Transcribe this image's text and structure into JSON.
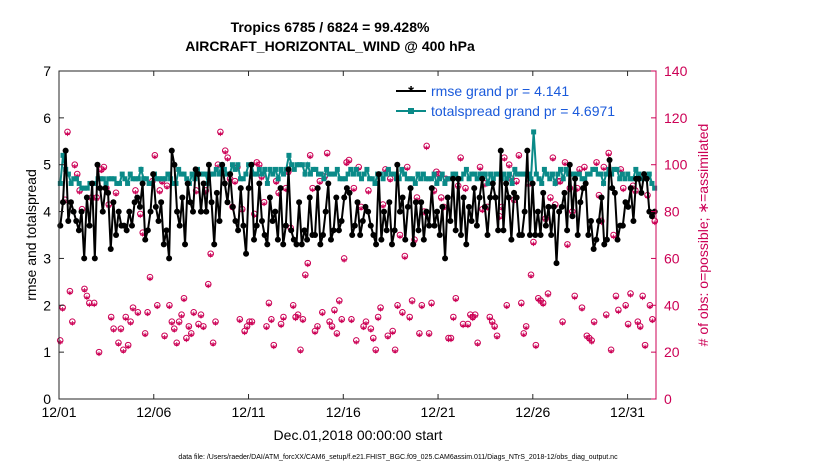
{
  "titles": {
    "line1": "Tropics 6785 / 6824 = 99.428%",
    "line2": "AIRCRAFT_HORIZONTAL_WIND @ 400 hPa"
  },
  "footer": "data file: /Users/raeder/DAI/ATM_forcXX/CAM6_setup/f.e21.FHIST_BGC.f09_025.CAM6assim.011/Diags_NTrS_2018-12/obs_diag_output.nc",
  "colors": {
    "rmse": "#000000",
    "spread": "#0a8a88",
    "obs": "#cc0055",
    "legend_text": "#1a5adb"
  },
  "chart_data": {
    "type": "line",
    "xlabel": "Dec.01,2018 00:00:00 start",
    "ylabel": "rmse and totalspread",
    "y2label": "# of obs: o=possible; ∗=assimilated",
    "xlim": [
      0,
      31.5
    ],
    "ylim": [
      0,
      7
    ],
    "y2lim": [
      0,
      140
    ],
    "xticks": [
      0,
      5,
      10,
      15,
      20,
      25,
      30
    ],
    "xtick_labels": [
      "12/01",
      "12/06",
      "12/11",
      "12/16",
      "12/21",
      "12/26",
      "12/31"
    ],
    "yticks": [
      0,
      1,
      2,
      3,
      4,
      5,
      6,
      7
    ],
    "ytick_labels": [
      "0",
      "1",
      "2",
      "3",
      "4",
      "5",
      "6",
      "7"
    ],
    "y2ticks": [
      0,
      20,
      40,
      60,
      80,
      100,
      120,
      140
    ],
    "y2tick_labels": [
      "0",
      "20",
      "40",
      "60",
      "80",
      "100",
      "120",
      "140"
    ],
    "legend": [
      "rmse grand pr = 4.141",
      "totalspread grand pr = 4.6971"
    ],
    "legend_location": "top-right",
    "rmse_values": [
      3.7,
      4.2,
      5.3,
      3.8,
      4.2,
      4.0,
      3.8,
      3.6,
      4.0,
      3.0,
      4.3,
      3.7,
      4.6,
      3.0,
      5.0,
      4.5,
      4.0,
      4.5,
      4.4,
      3.2,
      4.2,
      3.5,
      4.0,
      3.7,
      3.7,
      3.6,
      4.0,
      3.7,
      4.2,
      4.3,
      4.1,
      4.6,
      3.4,
      3.6,
      4.0,
      4.8,
      4.1,
      3.8,
      4.2,
      3.3,
      3.6,
      3.0,
      5.3,
      5.0,
      4.0,
      3.7,
      4.3,
      3.3,
      4.6,
      4.2,
      4.0,
      4.9,
      4.8,
      4.0,
      4.6,
      4.0,
      5.0,
      4.2,
      3.3,
      4.4,
      3.8,
      5.0,
      4.6,
      4.2,
      4.8,
      4.1,
      3.8,
      3.6,
      4.5,
      3.7,
      3.1,
      4.5,
      5.0,
      3.4,
      3.7,
      4.6,
      3.8,
      3.5,
      3.3,
      4.3,
      3.8,
      4.0,
      3.4,
      4.5,
      3.3,
      3.7,
      4.9,
      3.6,
      3.4,
      3.3,
      4.2,
      3.3,
      3.6,
      3.4,
      4.3,
      3.5,
      3.5,
      4.5,
      3.3,
      3.5,
      4.0,
      4.6,
      3.4,
      3.6,
      4.3,
      3.6,
      3.8,
      4.3,
      4.5,
      4.4,
      3.5,
      3.7,
      4.2,
      3.5,
      3.8,
      4.1,
      4.0,
      3.7,
      3.5,
      3.3,
      4.8,
      3.4,
      4.0,
      3.6,
      4.2,
      3.3,
      3.6,
      5.0,
      4.0,
      4.3,
      3.4,
      4.1,
      4.5,
      3.3,
      4.2,
      3.6,
      4.2,
      3.4,
      4.0,
      3.7,
      4.5,
      3.7,
      4.0,
      3.5,
      4.1,
      3.0,
      4.3,
      3.8,
      4.7,
      3.6,
      4.7,
      3.5,
      4.3,
      3.3,
      4.1,
      3.8,
      4.5,
      3.7,
      4.3,
      4.7,
      4.1,
      3.5,
      4.3,
      4.6,
      4.3,
      3.6,
      5.3,
      3.6,
      4.6,
      4.3,
      3.4,
      4.4,
      4.3,
      3.5,
      3.5,
      4.0,
      5.3,
      3.5,
      4.6,
      3.5,
      4.0,
      3.5,
      4.4,
      3.7,
      4.1,
      3.5,
      4.1,
      2.9,
      4.0,
      4.1,
      4.4,
      3.6,
      5.0,
      3.9,
      4.7,
      3.5,
      4.2,
      4.5,
      4.6,
      3.5,
      3.8,
      3.2,
      3.4,
      3.8,
      4.3,
      3.3,
      3.4,
      5.1,
      4.5,
      4.4,
      3.4,
      3.7,
      3.7,
      4.2,
      4.1,
      4.5,
      3.8,
      4.7,
      4.7,
      4.4,
      4.8,
      4.7,
      4.0,
      3.9,
      4.0
    ],
    "spread_values": [
      4.6,
      5.2,
      4.9,
      4.8,
      4.6,
      4.7,
      4.7,
      4.6,
      4.5,
      4.5,
      4.5,
      4.6,
      4.6,
      4.6,
      4.7,
      4.7,
      4.7,
      4.6,
      4.7,
      4.7,
      4.7,
      4.6,
      4.6,
      4.8,
      4.7,
      4.6,
      4.8,
      4.7,
      4.7,
      4.7,
      4.9,
      4.7,
      4.7,
      4.6,
      4.6,
      4.8,
      4.7,
      4.7,
      4.7,
      4.7,
      4.8,
      4.7,
      4.6,
      4.6,
      4.9,
      4.8,
      4.8,
      4.7,
      4.6,
      4.8,
      4.7,
      4.9,
      4.8,
      4.8,
      4.8,
      4.6,
      4.8,
      4.8,
      4.9,
      4.8,
      5.0,
      4.9,
      4.8,
      4.8,
      5.0,
      4.9,
      5.0,
      4.7,
      4.7,
      4.8,
      5.0,
      5.0,
      4.8,
      4.8,
      4.9,
      4.8,
      4.9,
      4.6,
      4.9,
      4.8,
      4.9,
      4.7,
      4.9,
      4.8,
      4.9,
      5.2,
      5.0,
      4.9,
      5.0,
      5.0,
      5.0,
      4.8,
      5.0,
      4.8,
      4.9,
      4.9,
      4.8,
      4.8,
      4.7,
      4.9,
      4.8,
      4.8,
      4.8,
      4.9,
      4.7,
      4.7,
      4.7,
      4.8,
      4.9,
      4.8,
      4.9,
      4.8,
      4.7,
      4.8,
      4.9,
      4.7,
      4.7,
      4.6,
      4.8,
      4.8,
      4.7,
      4.8,
      4.9,
      4.8,
      4.8,
      4.7,
      4.7,
      4.9,
      4.8,
      4.7,
      4.7,
      4.7,
      4.6,
      4.8,
      4.7,
      4.8,
      4.7,
      4.7,
      4.7,
      4.8,
      4.6,
      4.7,
      4.8,
      4.6,
      4.7,
      4.7,
      4.8,
      4.8,
      4.7,
      4.7,
      4.8,
      4.9,
      4.7,
      4.8,
      4.8,
      4.7,
      4.8,
      4.8,
      4.8,
      4.6,
      4.8,
      4.7,
      4.8,
      4.8,
      4.7,
      4.8,
      4.7,
      4.8,
      4.6,
      4.9,
      4.8,
      4.8,
      4.8,
      4.8,
      4.8,
      4.7,
      5.7,
      4.8,
      4.7,
      4.6,
      4.9,
      4.8,
      4.7,
      4.8,
      4.6,
      4.8,
      4.9,
      4.7,
      4.9,
      4.8,
      4.8,
      4.8,
      4.8,
      4.8,
      4.7,
      4.7,
      4.8,
      4.8,
      4.9,
      4.9,
      4.8,
      4.8,
      4.6,
      4.8,
      4.9,
      4.8,
      4.9,
      4.9,
      4.7,
      4.8,
      4.7,
      4.8,
      4.7,
      4.7,
      4.9,
      4.8,
      4.7,
      4.8,
      4.7,
      4.8,
      4.6,
      4.5
    ],
    "obs_possible": [
      25,
      39,
      85,
      114,
      46,
      33,
      100,
      96,
      89,
      81,
      47,
      44,
      41,
      86,
      41,
      86,
      20,
      98,
      99,
      90,
      83,
      35,
      30,
      88,
      24,
      30,
      21,
      35,
      23,
      33,
      39,
      89,
      37,
      79,
      71,
      28,
      37,
      52,
      93,
      104,
      40,
      89,
      93,
      27,
      91,
      40,
      33,
      30,
      24,
      33,
      36,
      43,
      26,
      31,
      28,
      37,
      89,
      32,
      36,
      31,
      89,
      49,
      62,
      24,
      33,
      100,
      114,
      98,
      106,
      103,
      94,
      82,
      93,
      99,
      34,
      81,
      29,
      31,
      33,
      33,
      79,
      101,
      100,
      95,
      84,
      31,
      41,
      34,
      23,
      93,
      88,
      32,
      35,
      90,
      97,
      73,
      40,
      35,
      36,
      21,
      34,
      53,
      58,
      104,
      90,
      29,
      31,
      93,
      37,
      95,
      105,
      33,
      31,
      38,
      28,
      42,
      34,
      60,
      101,
      102,
      34,
      90,
      25,
      99,
      82,
      31,
      33,
      89,
      30,
      26,
      21,
      35,
      39,
      83,
      98,
      27,
      94,
      29,
      21,
      40,
      70,
      37,
      61,
      99,
      35,
      42,
      68,
      86,
      28,
      40,
      80,
      108,
      28,
      41,
      89,
      97,
      96,
      86,
      82,
      94,
      26,
      26,
      35,
      43,
      91,
      103,
      32,
      90,
      32,
      36,
      35,
      36,
      24,
      99,
      81,
      92,
      82,
      35,
      33,
      31,
      27,
      78,
      82,
      103,
      40,
      100,
      94,
      85,
      93,
      104,
      41,
      28,
      31,
      92,
      53,
      67,
      23,
      43,
      42,
      41,
      77,
      45,
      86,
      103,
      83,
      93,
      93,
      33,
      101,
      66,
      90,
      80,
      44,
      90,
      98,
      39,
      99,
      27,
      26,
      25,
      33,
      101,
      87,
      76,
      99,
      36,
      105,
      21,
      70,
      44,
      38,
      98,
      90,
      40,
      32,
      45,
      91,
      89,
      33,
      31,
      44,
      23,
      87,
      40,
      34,
      76
    ],
    "obs_assimilated": [
      24,
      38,
      84,
      113,
      45,
      32,
      99,
      95,
      88,
      80,
      46,
      43,
      40,
      85,
      40,
      85,
      19,
      97,
      98,
      89,
      82,
      34,
      29,
      87,
      23,
      29,
      20,
      34,
      22,
      32,
      38,
      88,
      36,
      78,
      70,
      27,
      36,
      51,
      92,
      103,
      39,
      88,
      92,
      26,
      90,
      39,
      32,
      29,
      23,
      32,
      35,
      42,
      25,
      30,
      27,
      36,
      88,
      31,
      35,
      30,
      88,
      48,
      61,
      23,
      32,
      99,
      113,
      97,
      105,
      102,
      93,
      81,
      92,
      98,
      33,
      80,
      28,
      30,
      32,
      32,
      78,
      100,
      99,
      94,
      83,
      30,
      40,
      33,
      22,
      92,
      87,
      31,
      34,
      89,
      96,
      72,
      39,
      34,
      35,
      20,
      33,
      52,
      57,
      103,
      89,
      28,
      30,
      92,
      36,
      94,
      104,
      32,
      30,
      37,
      27,
      41,
      33,
      59,
      100,
      101,
      33,
      89,
      24,
      98,
      81,
      30,
      32,
      88,
      29,
      25,
      20,
      34,
      38,
      82,
      97,
      26,
      93,
      28,
      20,
      39,
      69,
      36,
      60,
      98,
      34,
      41,
      67,
      85,
      27,
      39,
      79,
      107,
      27,
      40,
      88,
      96,
      95,
      85,
      81,
      93,
      25,
      25,
      34,
      42,
      90,
      102,
      31,
      89,
      31,
      35,
      34,
      35,
      23,
      98,
      80,
      91,
      81,
      34,
      32,
      30,
      26,
      77,
      81,
      102,
      39,
      99,
      93,
      84,
      92,
      103,
      40,
      27,
      30,
      91,
      52,
      66,
      22,
      42,
      41,
      40,
      76,
      44,
      85,
      102,
      82,
      92,
      92,
      32,
      100,
      65,
      89,
      79,
      43,
      89,
      97,
      38,
      98,
      26,
      25,
      24,
      32,
      100,
      86,
      75,
      98,
      35,
      104,
      20,
      69,
      43,
      37,
      97,
      89,
      39,
      31,
      44,
      90,
      88,
      32,
      30,
      43,
      22,
      86,
      39,
      33,
      75
    ]
  }
}
